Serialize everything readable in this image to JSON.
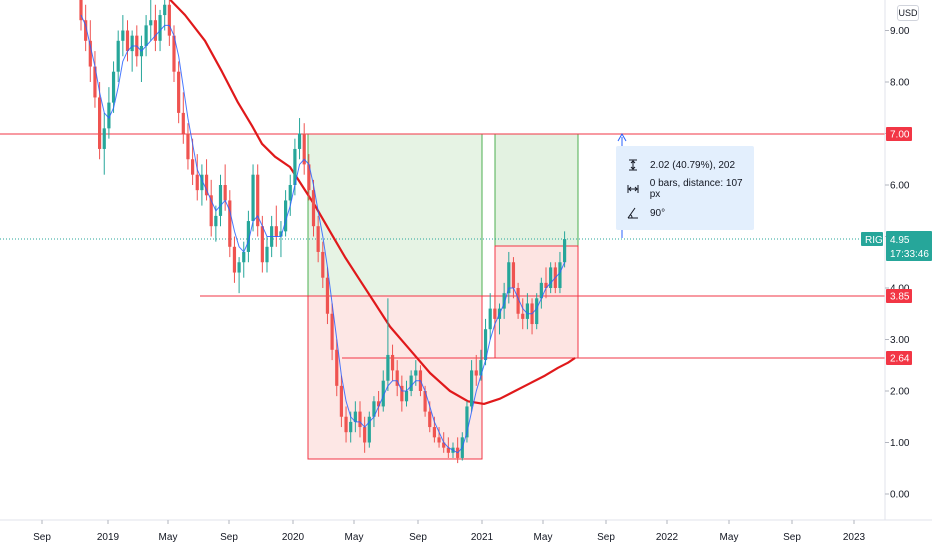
{
  "chart_data": {
    "type": "candlestick",
    "symbol": "RIG",
    "currency": "USD",
    "y_axis": {
      "ticks": [
        "9.00",
        "8.00",
        "7.00",
        "6.00",
        "5.00",
        "4.00",
        "3.00",
        "2.00",
        "1.00",
        "0.00"
      ],
      "min": -0.7,
      "max": 9.6
    },
    "x_axis": {
      "ticks": [
        "Sep",
        "2019",
        "May",
        "Sep",
        "2020",
        "May",
        "Sep",
        "2021",
        "May",
        "Sep",
        "2022",
        "May",
        "Sep",
        "2023"
      ]
    },
    "last_price": "4.95",
    "countdown": "17:33:46",
    "price_levels": [
      "7.00",
      "3.85",
      "2.64"
    ],
    "ohlc": [
      [
        9.6,
        9.9,
        9.0,
        9.2
      ],
      [
        9.2,
        9.5,
        8.6,
        8.8
      ],
      [
        8.8,
        9.2,
        8.0,
        8.3
      ],
      [
        8.3,
        8.6,
        7.5,
        7.7
      ],
      [
        7.7,
        8.0,
        6.5,
        6.7
      ],
      [
        6.7,
        7.4,
        6.2,
        7.1
      ],
      [
        7.1,
        7.9,
        6.9,
        7.6
      ],
      [
        7.6,
        8.4,
        7.4,
        8.2
      ],
      [
        8.2,
        9.0,
        8.0,
        8.8
      ],
      [
        8.8,
        9.3,
        8.5,
        9.0
      ],
      [
        9.0,
        9.2,
        8.4,
        8.6
      ],
      [
        8.6,
        9.0,
        8.2,
        8.9
      ],
      [
        8.9,
        9.1,
        8.3,
        8.5
      ],
      [
        8.5,
        8.9,
        8.0,
        8.7
      ],
      [
        8.7,
        9.3,
        8.5,
        9.1
      ],
      [
        9.1,
        9.6,
        8.8,
        9.2
      ],
      [
        9.2,
        9.5,
        8.6,
        8.8
      ],
      [
        8.8,
        9.4,
        8.6,
        9.3
      ],
      [
        9.3,
        9.8,
        9.0,
        9.5
      ],
      [
        9.5,
        9.7,
        8.7,
        8.9
      ],
      [
        8.9,
        9.1,
        8.0,
        8.2
      ],
      [
        8.2,
        8.4,
        7.2,
        7.4
      ],
      [
        7.4,
        7.8,
        6.8,
        7.0
      ],
      [
        7.0,
        7.2,
        6.3,
        6.5
      ],
      [
        6.5,
        6.9,
        6.0,
        6.2
      ],
      [
        6.2,
        6.6,
        5.7,
        5.9
      ],
      [
        5.9,
        6.4,
        5.6,
        6.2
      ],
      [
        6.2,
        6.5,
        5.7,
        5.8
      ],
      [
        5.8,
        6.1,
        5.0,
        5.2
      ],
      [
        5.2,
        5.6,
        4.9,
        5.4
      ],
      [
        5.4,
        6.2,
        5.2,
        6.0
      ],
      [
        6.0,
        6.4,
        5.5,
        5.7
      ],
      [
        5.7,
        5.9,
        4.6,
        4.8
      ],
      [
        4.8,
        5.0,
        4.1,
        4.3
      ],
      [
        4.3,
        4.6,
        3.9,
        4.5
      ],
      [
        4.5,
        4.9,
        4.2,
        4.7
      ],
      [
        4.7,
        5.5,
        4.5,
        5.3
      ],
      [
        5.3,
        6.4,
        5.1,
        6.2
      ],
      [
        6.2,
        6.4,
        5.0,
        5.2
      ],
      [
        5.2,
        5.4,
        4.3,
        4.5
      ],
      [
        4.5,
        5.0,
        4.3,
        4.8
      ],
      [
        4.8,
        5.4,
        4.6,
        5.2
      ],
      [
        5.2,
        5.6,
        4.8,
        5.0
      ],
      [
        5.0,
        5.3,
        4.6,
        5.1
      ],
      [
        5.1,
        5.9,
        5.0,
        5.7
      ],
      [
        5.7,
        6.2,
        5.4,
        6.0
      ],
      [
        6.0,
        6.9,
        5.8,
        6.7
      ],
      [
        6.7,
        7.3,
        6.5,
        7.0
      ],
      [
        7.0,
        7.2,
        6.2,
        6.4
      ],
      [
        6.4,
        6.6,
        5.7,
        5.9
      ],
      [
        5.9,
        6.1,
        5.0,
        5.2
      ],
      [
        5.2,
        5.4,
        4.5,
        4.7
      ],
      [
        4.7,
        4.9,
        4.0,
        4.2
      ],
      [
        4.2,
        4.4,
        3.3,
        3.5
      ],
      [
        3.5,
        3.7,
        2.6,
        2.8
      ],
      [
        2.8,
        3.0,
        1.9,
        2.1
      ],
      [
        2.1,
        2.3,
        1.3,
        1.5
      ],
      [
        1.5,
        1.7,
        1.0,
        1.2
      ],
      [
        1.2,
        1.6,
        1.0,
        1.4
      ],
      [
        1.4,
        1.8,
        1.2,
        1.6
      ],
      [
        1.6,
        1.8,
        1.1,
        1.3
      ],
      [
        1.3,
        1.5,
        0.8,
        1.0
      ],
      [
        1.0,
        1.6,
        0.9,
        1.5
      ],
      [
        1.5,
        1.9,
        1.3,
        1.8
      ],
      [
        1.8,
        2.0,
        1.5,
        1.7
      ],
      [
        1.7,
        2.4,
        1.6,
        2.2
      ],
      [
        2.2,
        3.8,
        2.0,
        2.7
      ],
      [
        2.7,
        2.9,
        2.2,
        2.4
      ],
      [
        2.4,
        2.6,
        1.9,
        2.1
      ],
      [
        2.1,
        2.3,
        1.6,
        1.8
      ],
      [
        1.8,
        2.2,
        1.7,
        2.0
      ],
      [
        2.0,
        2.4,
        1.9,
        2.3
      ],
      [
        2.3,
        2.6,
        2.1,
        2.4
      ],
      [
        2.4,
        2.5,
        1.9,
        2.0
      ],
      [
        2.0,
        2.1,
        1.5,
        1.6
      ],
      [
        1.6,
        1.8,
        1.2,
        1.3
      ],
      [
        1.3,
        1.5,
        1.0,
        1.1
      ],
      [
        1.1,
        1.3,
        0.9,
        1.0
      ],
      [
        1.0,
        1.2,
        0.8,
        0.9
      ],
      [
        0.9,
        1.1,
        0.7,
        0.8
      ],
      [
        0.8,
        1.0,
        0.7,
        0.9
      ],
      [
        0.9,
        1.1,
        0.6,
        0.7
      ],
      [
        0.7,
        1.2,
        0.65,
        1.1
      ],
      [
        1.1,
        1.8,
        1.0,
        1.7
      ],
      [
        1.7,
        2.6,
        1.6,
        2.4
      ],
      [
        2.4,
        2.7,
        2.1,
        2.3
      ],
      [
        2.3,
        2.8,
        2.2,
        2.6
      ],
      [
        2.6,
        3.4,
        2.5,
        3.2
      ],
      [
        3.2,
        3.9,
        3.0,
        3.6
      ],
      [
        3.6,
        3.9,
        3.2,
        3.4
      ],
      [
        3.4,
        3.7,
        3.1,
        3.6
      ],
      [
        3.6,
        4.1,
        3.4,
        3.9
      ],
      [
        3.9,
        4.7,
        3.7,
        4.5
      ],
      [
        4.5,
        4.6,
        3.8,
        4.0
      ],
      [
        4.0,
        4.1,
        3.4,
        3.5
      ],
      [
        3.5,
        3.8,
        3.2,
        3.4
      ],
      [
        3.4,
        3.9,
        3.2,
        3.7
      ],
      [
        3.7,
        3.8,
        3.1,
        3.3
      ],
      [
        3.3,
        3.9,
        3.2,
        3.8
      ],
      [
        3.8,
        4.2,
        3.6,
        4.1
      ],
      [
        4.1,
        4.4,
        3.8,
        4.0
      ],
      [
        4.0,
        4.5,
        3.9,
        4.4
      ],
      [
        4.4,
        4.5,
        3.9,
        4.0
      ],
      [
        4.0,
        4.7,
        3.9,
        4.5
      ],
      [
        4.5,
        5.1,
        4.4,
        4.95
      ]
    ],
    "ma_thin": [
      9.3,
      9.1,
      8.7,
      8.3,
      7.8,
      7.4,
      7.3,
      7.5,
      7.9,
      8.4,
      8.6,
      8.7,
      8.7,
      8.6,
      8.7,
      8.8,
      8.9,
      9.0,
      9.1,
      9.1,
      8.9,
      8.5,
      7.9,
      7.3,
      6.8,
      6.3,
      6.1,
      5.9,
      5.7,
      5.5,
      5.6,
      5.7,
      5.5,
      5.1,
      4.8,
      4.7,
      4.9,
      5.3,
      5.4,
      5.2,
      5.0,
      5.0,
      5.0,
      5.0,
      5.3,
      5.6,
      6.0,
      6.4,
      6.5,
      6.4,
      6.0,
      5.5,
      5.0,
      4.4,
      3.7,
      3.0,
      2.3,
      1.8,
      1.5,
      1.4,
      1.4,
      1.3,
      1.4,
      1.5,
      1.7,
      1.9,
      2.1,
      2.2,
      2.2,
      2.0,
      2.0,
      2.1,
      2.2,
      2.2,
      2.0,
      1.7,
      1.4,
      1.2,
      1.0,
      0.9,
      0.85,
      0.8,
      0.9,
      1.2,
      1.6,
      2.0,
      2.3,
      2.6,
      3.0,
      3.3,
      3.5,
      3.7,
      4.0,
      4.0,
      3.8,
      3.6,
      3.5,
      3.5,
      3.6,
      3.8,
      4.0,
      4.1,
      4.2,
      4.3,
      4.5
    ],
    "ma_thick": [
      [
        0.48,
        9.8
      ],
      [
        0.55,
        9.3
      ],
      [
        0.6,
        8.8
      ],
      [
        0.65,
        8.2
      ],
      [
        0.7,
        7.6
      ],
      [
        0.75,
        7.15
      ],
      [
        0.8,
        6.8
      ],
      [
        0.85,
        6.55
      ],
      [
        0.9,
        6.35
      ],
      [
        0.95,
        6.05
      ],
      [
        1.0,
        5.6
      ],
      [
        1.05,
        5.1
      ],
      [
        1.1,
        4.6
      ],
      [
        1.15,
        4.15
      ],
      [
        1.2,
        3.7
      ],
      [
        1.25,
        3.25
      ],
      [
        1.3,
        2.8
      ],
      [
        1.35,
        2.35
      ],
      [
        1.4,
        2.0
      ],
      [
        1.45,
        1.8
      ],
      [
        1.5,
        1.75
      ],
      [
        1.55,
        1.85
      ],
      [
        1.6,
        2.0
      ],
      [
        1.65,
        2.15
      ],
      [
        1.7,
        2.3
      ],
      [
        1.75,
        2.45
      ],
      [
        1.8,
        2.55
      ],
      [
        1.85,
        2.64
      ]
    ]
  }
}
